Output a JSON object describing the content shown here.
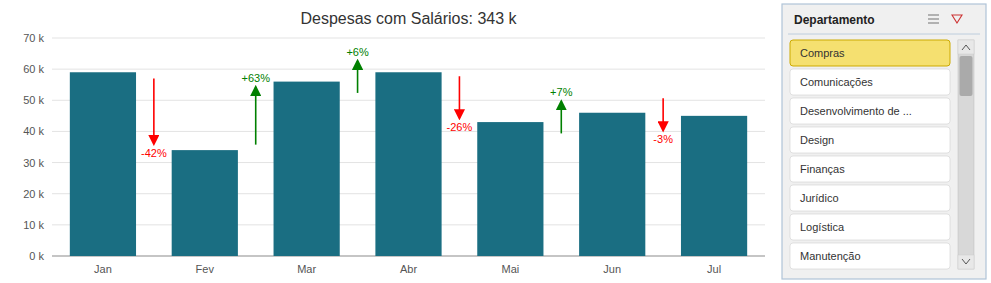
{
  "chart_data": {
    "type": "bar",
    "title": "Despesas com Salários: 343 k",
    "categories": [
      "Jan",
      "Fev",
      "Mar",
      "Abr",
      "Mai",
      "Jun",
      "Jul"
    ],
    "values": [
      59000,
      34000,
      56000,
      59000,
      43000,
      46000,
      45000
    ],
    "color": "#1a6e82",
    "ylim": [
      0,
      70000
    ],
    "yticks": [
      {
        "value": 0,
        "label": "0 k"
      },
      {
        "value": 10000,
        "label": "10 k"
      },
      {
        "value": 20000,
        "label": "20 k"
      },
      {
        "value": 30000,
        "label": "30 k"
      },
      {
        "value": 40000,
        "label": "40 k"
      },
      {
        "value": 50000,
        "label": "50 k"
      },
      {
        "value": 60000,
        "label": "60 k"
      },
      {
        "value": 70000,
        "label": "70 k"
      }
    ],
    "grid": true,
    "annotations": [
      {
        "text": "-42%",
        "from": "Jan",
        "to": "Fev",
        "color": "red"
      },
      {
        "text": "+63%",
        "from": "Fev",
        "to": "Mar",
        "color": "green"
      },
      {
        "text": "+6%",
        "from": "Mar",
        "to": "Abr",
        "color": "green"
      },
      {
        "text": "-26%",
        "from": "Abr",
        "to": "Mai",
        "color": "red"
      },
      {
        "text": "+7%",
        "from": "Mai",
        "to": "Jun",
        "color": "green"
      },
      {
        "text": "-3%",
        "from": "Jun",
        "to": "Jul",
        "color": "red"
      }
    ],
    "slicer": {
      "title": "Departamento",
      "items": [
        "Compras",
        "Comunicações",
        "Desenvolvimento de ...",
        "Design",
        "Finanças",
        "Jurídico",
        "Logística",
        "Manutenção"
      ],
      "selected": "Compras",
      "selected_color": "#f5e070"
    }
  }
}
